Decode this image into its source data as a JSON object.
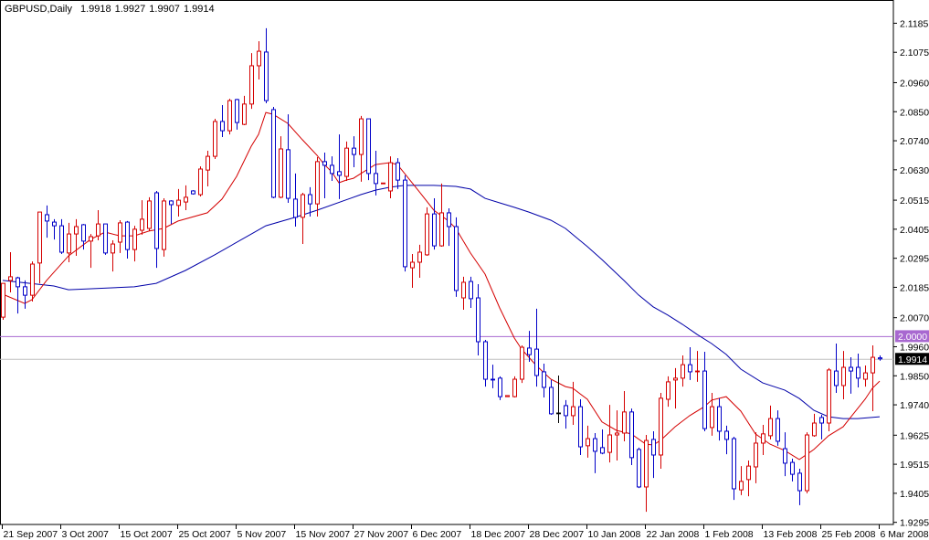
{
  "header": {
    "symbol_timeframe": "GBPUSD,Daily",
    "open": "1.9918",
    "high": "1.9927",
    "low": "1.9907",
    "close": "1.9914"
  },
  "colors": {
    "bull": "#d40000",
    "bear": "#0000c8",
    "doji": "#000000",
    "ma_fast": "#d40000",
    "ma_slow": "#0000a8",
    "level_line": "#a868d0",
    "bid_line": "#c0c0c0",
    "bid_label_bg": "#000000"
  },
  "chart_data": {
    "type": "candlestick",
    "title": "GBPUSD,Daily",
    "ylim": [
      1.9295,
      2.1185
    ],
    "grid": false,
    "y_ticks": [
      "2.1185",
      "2.1075",
      "2.0960",
      "2.0850",
      "2.0740",
      "2.0630",
      "2.0515",
      "2.0405",
      "2.0295",
      "2.0185",
      "2.0070",
      "1.9960",
      "1.9850",
      "1.9740",
      "1.9625",
      "1.9515",
      "1.9405",
      "1.9295"
    ],
    "x_ticks": [
      "21 Sep 2007",
      "3 Oct 2007",
      "15 Oct 2007",
      "25 Oct 2007",
      "5 Nov 2007",
      "15 Nov 2007",
      "27 Nov 2007",
      "6 Dec 2007",
      "18 Dec 2007",
      "28 Dec 2007",
      "10 Jan 2008",
      "22 Jan 2008",
      "1 Feb 2008",
      "13 Feb 2008",
      "25 Feb 2008",
      "6 Mar 2008"
    ],
    "level_line": {
      "value": 2.0,
      "label": "2.0000"
    },
    "bid_line": {
      "value": 1.9914,
      "label": "1.9914"
    },
    "ohlc_fields": [
      "open",
      "high",
      "low",
      "close"
    ],
    "candles": [
      [
        2.0072,
        2.02,
        2.0062,
        2.02
      ],
      [
        2.0211,
        2.0318,
        2.0166,
        2.0225
      ],
      [
        2.0221,
        2.0225,
        2.0086,
        2.0187
      ],
      [
        2.0187,
        2.0211,
        2.0104,
        2.0155
      ],
      [
        2.0155,
        2.0283,
        2.0131,
        2.0273
      ],
      [
        2.0277,
        2.047,
        2.02,
        2.047
      ],
      [
        2.046,
        2.0495,
        2.0373,
        2.0436
      ],
      [
        2.0432,
        2.0443,
        2.0366,
        2.0418
      ],
      [
        2.0418,
        2.0443,
        2.0311,
        2.0318
      ],
      [
        2.0315,
        2.0429,
        2.028,
        2.0387
      ],
      [
        2.0387,
        2.0443,
        2.0304,
        2.0415
      ],
      [
        2.0422,
        2.0425,
        2.0328,
        2.036
      ],
      [
        2.036,
        2.0387,
        2.0259,
        2.0377
      ],
      [
        2.038,
        2.0477,
        2.0363,
        2.0425
      ],
      [
        2.0425,
        2.0425,
        2.0308,
        2.0315
      ],
      [
        2.0315,
        2.0363,
        2.0245,
        2.0349
      ],
      [
        2.0356,
        2.0439,
        2.0315,
        2.0429
      ],
      [
        2.0432,
        2.0436,
        2.0294,
        2.0328
      ],
      [
        2.0328,
        2.0418,
        2.0283,
        2.0405
      ],
      [
        2.0401,
        2.0515,
        2.0384,
        2.0443
      ],
      [
        2.0408,
        2.0526,
        2.0398,
        2.0512
      ],
      [
        2.0543,
        2.055,
        2.0259,
        2.0332
      ],
      [
        2.0328,
        2.0522,
        2.0301,
        2.0512
      ],
      [
        2.0512,
        2.0515,
        2.0425,
        2.0498
      ],
      [
        2.0495,
        2.0557,
        2.0453,
        2.0515
      ],
      [
        2.0508,
        2.0571,
        2.0477,
        2.0526
      ],
      [
        2.055,
        2.0553,
        2.0536,
        2.0539
      ],
      [
        2.0536,
        2.0643,
        2.0529,
        2.0633
      ],
      [
        2.0629,
        2.0702,
        2.0567,
        2.0681
      ],
      [
        2.0681,
        2.0823,
        2.0671,
        2.0813
      ],
      [
        2.0813,
        2.0875,
        2.0754,
        2.0778
      ],
      [
        2.0778,
        2.0899,
        2.0764,
        2.0892
      ],
      [
        2.0896,
        2.0899,
        2.0782,
        2.0809
      ],
      [
        2.0802,
        2.091,
        2.0799,
        2.0879
      ],
      [
        2.0879,
        2.1072,
        2.0861,
        2.1024
      ],
      [
        2.1024,
        2.1117,
        2.0972,
        2.1079
      ],
      [
        2.1076,
        2.1166,
        2.0882,
        2.0892
      ],
      [
        2.0858,
        2.0868,
        2.0522,
        2.0526
      ],
      [
        2.0526,
        2.0757,
        2.0522,
        2.0709
      ],
      [
        2.0706,
        2.084,
        2.0505,
        2.0522
      ],
      [
        2.0519,
        2.0616,
        2.0415,
        2.045
      ],
      [
        2.045,
        2.0543,
        2.0349,
        2.0536
      ],
      [
        2.0536,
        2.0564,
        2.0453,
        2.0501
      ],
      [
        2.0501,
        2.0678,
        2.0453,
        2.0661
      ],
      [
        2.0661,
        2.0695,
        2.0522,
        2.0647
      ],
      [
        2.0647,
        2.0681,
        2.0588,
        2.0616
      ],
      [
        2.0623,
        2.0764,
        2.0519,
        2.0609
      ],
      [
        2.0605,
        2.0737,
        2.0588,
        2.0712
      ],
      [
        2.0712,
        2.0757,
        2.064,
        2.0688
      ],
      [
        2.0688,
        2.0834,
        2.0585,
        2.0823
      ],
      [
        2.0823,
        2.0823,
        2.0591,
        2.0616
      ],
      [
        2.0616,
        2.0702,
        2.0533,
        2.0578
      ],
      [
        2.0577,
        2.058,
        2.0577,
        2.058
      ],
      [
        2.055,
        2.0681,
        2.0522,
        2.0657
      ],
      [
        2.0657,
        2.0674,
        2.0557,
        2.0591
      ],
      [
        2.0591,
        2.0609,
        2.0245,
        2.0263
      ],
      [
        2.0259,
        2.0311,
        2.0183,
        2.028
      ],
      [
        2.028,
        2.0346,
        2.0221,
        2.0318
      ],
      [
        2.0308,
        2.0488,
        2.0304,
        2.0463
      ],
      [
        2.0463,
        2.0522,
        2.0328,
        2.0342
      ],
      [
        2.0342,
        2.0578,
        2.0339,
        2.0467
      ],
      [
        2.0467,
        2.0484,
        2.0342,
        2.0415
      ],
      [
        2.0415,
        2.045,
        2.0149,
        2.0173
      ],
      [
        2.0145,
        2.0225,
        2.01,
        2.0204
      ],
      [
        2.0207,
        2.0225,
        2.0107,
        2.0142
      ],
      [
        2.0145,
        2.0197,
        1.9927,
        1.9979
      ],
      [
        1.9979,
        1.9986,
        1.9809,
        1.9837
      ],
      [
        1.9837,
        1.9892,
        1.9803,
        1.9834
      ],
      [
        1.9841,
        1.9848,
        1.9758,
        1.9771
      ],
      [
        1.9771,
        1.9775,
        1.9771,
        1.9775
      ],
      [
        1.9771,
        1.9848,
        1.9768,
        1.9837
      ],
      [
        1.9837,
        1.9965,
        1.9823,
        1.9958
      ],
      [
        1.9955,
        2.002,
        1.9903,
        1.993
      ],
      [
        1.9951,
        2.0104,
        1.9809,
        1.9851
      ],
      [
        1.9865,
        1.9896,
        1.9768,
        1.9806
      ],
      [
        1.9806,
        1.9834,
        1.9702,
        1.9706
      ],
      [
        1.9709,
        1.9851,
        1.9671,
        1.9709
      ],
      [
        1.9737,
        1.9758,
        1.965,
        1.9699
      ],
      [
        1.9699,
        1.9827,
        1.9664,
        1.9733
      ],
      [
        1.9733,
        1.9761,
        1.955,
        1.9581
      ],
      [
        1.9585,
        1.9661,
        1.954,
        1.9612
      ],
      [
        1.9612,
        1.9633,
        1.9481,
        1.9564
      ],
      [
        1.9578,
        1.9647,
        1.9553,
        1.9557
      ],
      [
        1.956,
        1.974,
        1.9522,
        1.9626
      ],
      [
        1.9626,
        1.9719,
        1.9529,
        1.9633
      ],
      [
        1.9633,
        1.9792,
        1.9602,
        1.9713
      ],
      [
        1.9713,
        1.9726,
        1.9512,
        1.954
      ],
      [
        1.9571,
        1.9578,
        1.9425,
        1.9429
      ],
      [
        1.9429,
        1.9626,
        1.9335,
        1.9605
      ],
      [
        1.9609,
        1.964,
        1.9463,
        1.955
      ],
      [
        1.955,
        1.9785,
        1.9498,
        1.9765
      ],
      [
        1.9761,
        1.9848,
        1.9733,
        1.9827
      ],
      [
        1.9834,
        1.9879,
        1.9726,
        1.9841
      ],
      [
        1.9841,
        1.9927,
        1.9809,
        1.9892
      ],
      [
        1.9892,
        1.9958,
        1.9834,
        1.9865
      ],
      [
        1.9865,
        1.9944,
        1.9827,
        1.9868
      ],
      [
        1.9868,
        1.9941,
        1.964,
        1.965
      ],
      [
        1.9654,
        1.9785,
        1.9623,
        1.9733
      ],
      [
        1.9733,
        1.9765,
        1.9605,
        1.964
      ],
      [
        1.964,
        1.9661,
        1.9553,
        1.9609
      ],
      [
        1.9612,
        1.9619,
        1.938,
        1.9422
      ],
      [
        1.9418,
        1.9508,
        1.9398,
        1.945
      ],
      [
        1.9457,
        1.9529,
        1.9394,
        1.9508
      ],
      [
        1.9505,
        1.9636,
        1.9443,
        1.9595
      ],
      [
        1.9595,
        1.9664,
        1.955,
        1.963
      ],
      [
        1.9623,
        1.9737,
        1.9609,
        1.9688
      ],
      [
        1.9688,
        1.9719,
        1.9585,
        1.9602
      ],
      [
        1.9574,
        1.9636,
        1.947,
        1.9519
      ],
      [
        1.9522,
        1.9536,
        1.945,
        1.9477
      ],
      [
        1.9481,
        1.9498,
        1.936,
        1.9415
      ],
      [
        1.9415,
        1.9636,
        1.9405,
        1.9626
      ],
      [
        1.9623,
        1.9706,
        1.9619,
        1.9671
      ],
      [
        1.9692,
        1.9702,
        1.9609,
        1.9671
      ],
      [
        1.9671,
        1.9879,
        1.964,
        1.9872
      ],
      [
        1.9868,
        1.9972,
        1.9785,
        1.9813
      ],
      [
        1.9813,
        1.9944,
        1.9761,
        1.9882
      ],
      [
        1.9882,
        1.992,
        1.9782,
        1.9868
      ],
      [
        1.9882,
        1.9934,
        1.9806,
        1.9841
      ],
      [
        1.9837,
        1.9889,
        1.9809,
        1.9861
      ],
      [
        1.9861,
        1.9965,
        1.9716,
        1.992
      ],
      [
        1.9918,
        1.9927,
        1.9907,
        1.9914
      ]
    ],
    "ma_fast": [
      [
        0,
        2.0159
      ],
      [
        3,
        2.0124
      ],
      [
        4,
        2.0138
      ],
      [
        6,
        2.0211
      ],
      [
        9,
        2.0304
      ],
      [
        12,
        2.0366
      ],
      [
        14,
        2.0394
      ],
      [
        16,
        2.038
      ],
      [
        18,
        2.038
      ],
      [
        20,
        2.0398
      ],
      [
        22,
        2.0408
      ],
      [
        24,
        2.0436
      ],
      [
        28,
        2.0467
      ],
      [
        30,
        2.0519
      ],
      [
        32,
        2.0605
      ],
      [
        34,
        2.0719
      ],
      [
        35,
        2.0764
      ],
      [
        36,
        2.0847
      ],
      [
        37,
        2.084
      ],
      [
        39,
        2.0806
      ],
      [
        41,
        2.0744
      ],
      [
        43,
        2.0685
      ],
      [
        44,
        2.065
      ],
      [
        45,
        2.0623
      ],
      [
        46,
        2.0581
      ],
      [
        47,
        2.0591
      ],
      [
        48,
        2.0598
      ],
      [
        49,
        2.0616
      ],
      [
        51,
        2.065
      ],
      [
        53,
        2.0657
      ],
      [
        54,
        2.065
      ],
      [
        55,
        2.0616
      ],
      [
        57,
        2.0547
      ],
      [
        59,
        2.0477
      ],
      [
        61,
        2.0436
      ],
      [
        62,
        2.0408
      ],
      [
        64,
        2.0315
      ],
      [
        66,
        2.0235
      ],
      [
        68,
        2.0107
      ],
      [
        70,
        1.9993
      ],
      [
        71,
        1.9951
      ],
      [
        73,
        1.9889
      ],
      [
        75,
        1.9837
      ],
      [
        77,
        1.9809
      ],
      [
        78,
        1.9803
      ],
      [
        80,
        1.9761
      ],
      [
        82,
        1.9675
      ],
      [
        84,
        1.9643
      ],
      [
        86,
        1.963
      ],
      [
        88,
        1.9591
      ],
      [
        89,
        1.9588
      ],
      [
        90,
        1.9605
      ],
      [
        92,
        1.9657
      ],
      [
        94,
        1.9699
      ],
      [
        96,
        1.9733
      ],
      [
        97,
        1.9758
      ],
      [
        99,
        1.9771
      ],
      [
        101,
        1.9716
      ],
      [
        103,
        1.963
      ],
      [
        105,
        1.9591
      ],
      [
        107,
        1.9567
      ],
      [
        109,
        1.9533
      ],
      [
        111,
        1.9571
      ],
      [
        113,
        1.9623
      ],
      [
        115,
        1.9657
      ],
      [
        116,
        1.9692
      ],
      [
        118,
        1.9761
      ],
      [
        119,
        1.9803
      ],
      [
        120,
        1.983
      ]
    ],
    "ma_slow": [
      [
        0,
        2.0211
      ],
      [
        7,
        2.019
      ],
      [
        9,
        2.0176
      ],
      [
        18,
        2.0187
      ],
      [
        21,
        2.02
      ],
      [
        25,
        2.0249
      ],
      [
        29,
        2.0308
      ],
      [
        36,
        2.0418
      ],
      [
        40,
        2.045
      ],
      [
        43,
        2.0477
      ],
      [
        49,
        2.0536
      ],
      [
        51,
        2.0553
      ],
      [
        53,
        2.0564
      ],
      [
        55,
        2.0571
      ],
      [
        59,
        2.0571
      ],
      [
        62,
        2.0567
      ],
      [
        64,
        2.0557
      ],
      [
        66,
        2.0522
      ],
      [
        68,
        2.0505
      ],
      [
        70,
        2.0488
      ],
      [
        72,
        2.047
      ],
      [
        75,
        2.0439
      ],
      [
        77,
        2.0408
      ],
      [
        80,
        2.0339
      ],
      [
        82,
        2.029
      ],
      [
        85,
        2.0211
      ],
      [
        87,
        2.0156
      ],
      [
        89,
        2.0111
      ],
      [
        91,
        2.008
      ],
      [
        93,
        2.0045
      ],
      [
        95,
        2.0007
      ],
      [
        97,
        1.9972
      ],
      [
        99,
        1.9931
      ],
      [
        101,
        1.9875
      ],
      [
        104,
        1.9823
      ],
      [
        107,
        1.9796
      ],
      [
        109,
        1.9764
      ],
      [
        111,
        1.9719
      ],
      [
        113,
        1.9695
      ],
      [
        115,
        1.9688
      ],
      [
        117,
        1.9688
      ],
      [
        120,
        1.9695
      ]
    ]
  }
}
